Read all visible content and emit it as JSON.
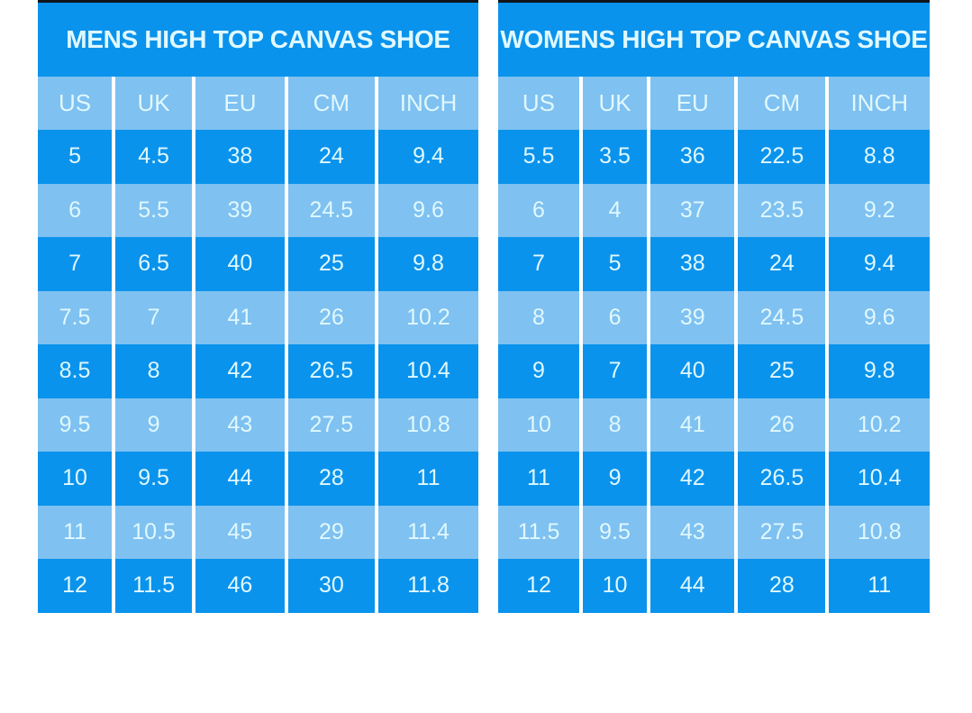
{
  "colors": {
    "row_dark": "#0a93ec",
    "row_light": "#7fc1f0",
    "text": "#e0f8ff",
    "separator": "#ffffff",
    "top_border": "#10151b",
    "page_background": "#ffffff"
  },
  "chart_data": [
    {
      "type": "table",
      "title": "MENS HIGH TOP CANVAS SHOE",
      "columns": [
        "US",
        "UK",
        "EU",
        "CM",
        "INCH"
      ],
      "rows": [
        [
          "5",
          "4.5",
          "38",
          "24",
          "9.4"
        ],
        [
          "6",
          "5.5",
          "39",
          "24.5",
          "9.6"
        ],
        [
          "7",
          "6.5",
          "40",
          "25",
          "9.8"
        ],
        [
          "7.5",
          "7",
          "41",
          "26",
          "10.2"
        ],
        [
          "8.5",
          "8",
          "42",
          "26.5",
          "10.4"
        ],
        [
          "9.5",
          "9",
          "43",
          "27.5",
          "10.8"
        ],
        [
          "10",
          "9.5",
          "44",
          "28",
          "11"
        ],
        [
          "11",
          "10.5",
          "45",
          "29",
          "11.4"
        ],
        [
          "12",
          "11.5",
          "46",
          "30",
          "11.8"
        ]
      ]
    },
    {
      "type": "table",
      "title": "WOMENS HIGH TOP CANVAS SHOE",
      "columns": [
        "US",
        "UK",
        "EU",
        "CM",
        "INCH"
      ],
      "rows": [
        [
          "5.5",
          "3.5",
          "36",
          "22.5",
          "8.8"
        ],
        [
          "6",
          "4",
          "37",
          "23.5",
          "9.2"
        ],
        [
          "7",
          "5",
          "38",
          "24",
          "9.4"
        ],
        [
          "8",
          "6",
          "39",
          "24.5",
          "9.6"
        ],
        [
          "9",
          "7",
          "40",
          "25",
          "9.8"
        ],
        [
          "10",
          "8",
          "41",
          "26",
          "10.2"
        ],
        [
          "11",
          "9",
          "42",
          "26.5",
          "10.4"
        ],
        [
          "11.5",
          "9.5",
          "43",
          "27.5",
          "10.8"
        ],
        [
          "12",
          "10",
          "44",
          "28",
          "11"
        ]
      ]
    }
  ]
}
